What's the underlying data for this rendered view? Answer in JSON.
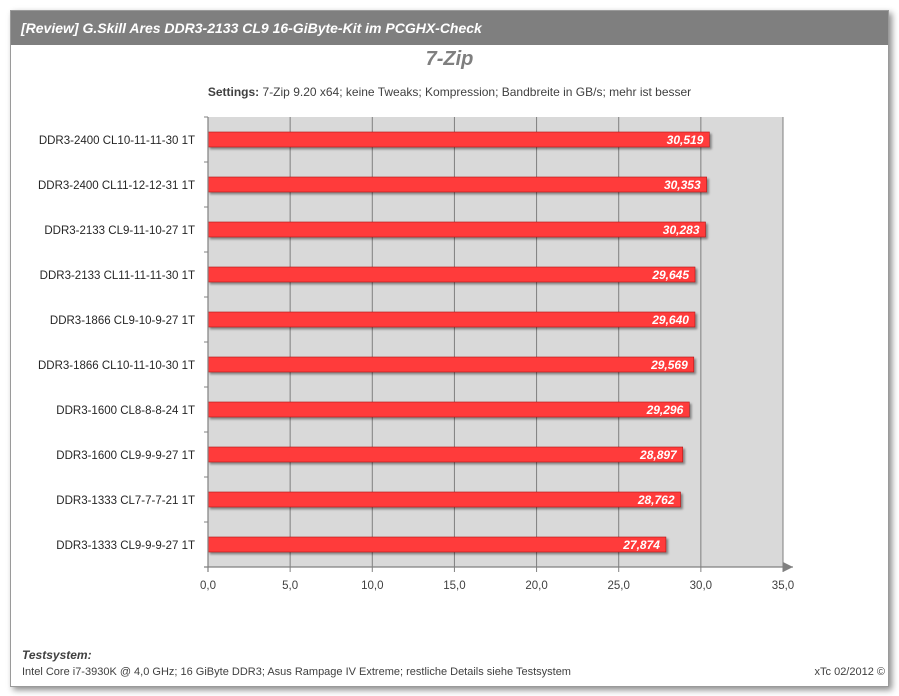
{
  "header": {
    "title": "[Review] G.Skill Ares DDR3-2133 CL9 16-GiByte-Kit im PCGHX-Check"
  },
  "subtitle": {
    "label": "Settings:",
    "text": "7-Zip 9.20 x64; keine Tweaks; Kompression; Bandbreite in GB/s; mehr ist besser"
  },
  "footer": {
    "title": "Testsystem:",
    "text": "Intel Core i7-3930K @ 4,0 GHz; 16 GiByte DDR3; Asus Rampage IV Extreme; restliche Details siehe Testsystem",
    "credit": "xTc 02/2012 ©"
  },
  "colors": {
    "bar": "#ff3b3b",
    "bar_border": "#b01818",
    "plot_bg": "#d9d9d9",
    "header_bg": "#7f7f7f"
  },
  "chart_data": {
    "type": "bar",
    "orientation": "horizontal",
    "title": "7-Zip",
    "categories": [
      "DDR3-2400 CL10-11-11-30 1T",
      "DDR3-2400 CL11-12-12-31 1T",
      "DDR3-2133 CL9-11-10-27 1T",
      "DDR3-2133 CL11-11-11-30 1T",
      "DDR3-1866 CL9-10-9-27 1T",
      "DDR3-1866 CL10-11-10-30 1T",
      "DDR3-1600 CL8-8-8-24 1T",
      "DDR3-1600 CL9-9-9-27 1T",
      "DDR3-1333 CL7-7-7-21 1T",
      "DDR3-1333 CL9-9-9-27 1T"
    ],
    "values": [
      30.519,
      30.353,
      30.283,
      29.645,
      29.64,
      29.569,
      29.296,
      28.897,
      28.762,
      27.874
    ],
    "value_labels": [
      "30,519",
      "30,353",
      "30,283",
      "29,645",
      "29,640",
      "29,569",
      "29,296",
      "28,897",
      "28,762",
      "27,874"
    ],
    "xlim": [
      0,
      35
    ],
    "xticks": [
      0,
      5,
      10,
      15,
      20,
      25,
      30,
      35
    ],
    "xtick_labels": [
      "0,0",
      "5,0",
      "10,0",
      "15,0",
      "20,0",
      "25,0",
      "30,0",
      "35,0"
    ],
    "grid": true
  }
}
